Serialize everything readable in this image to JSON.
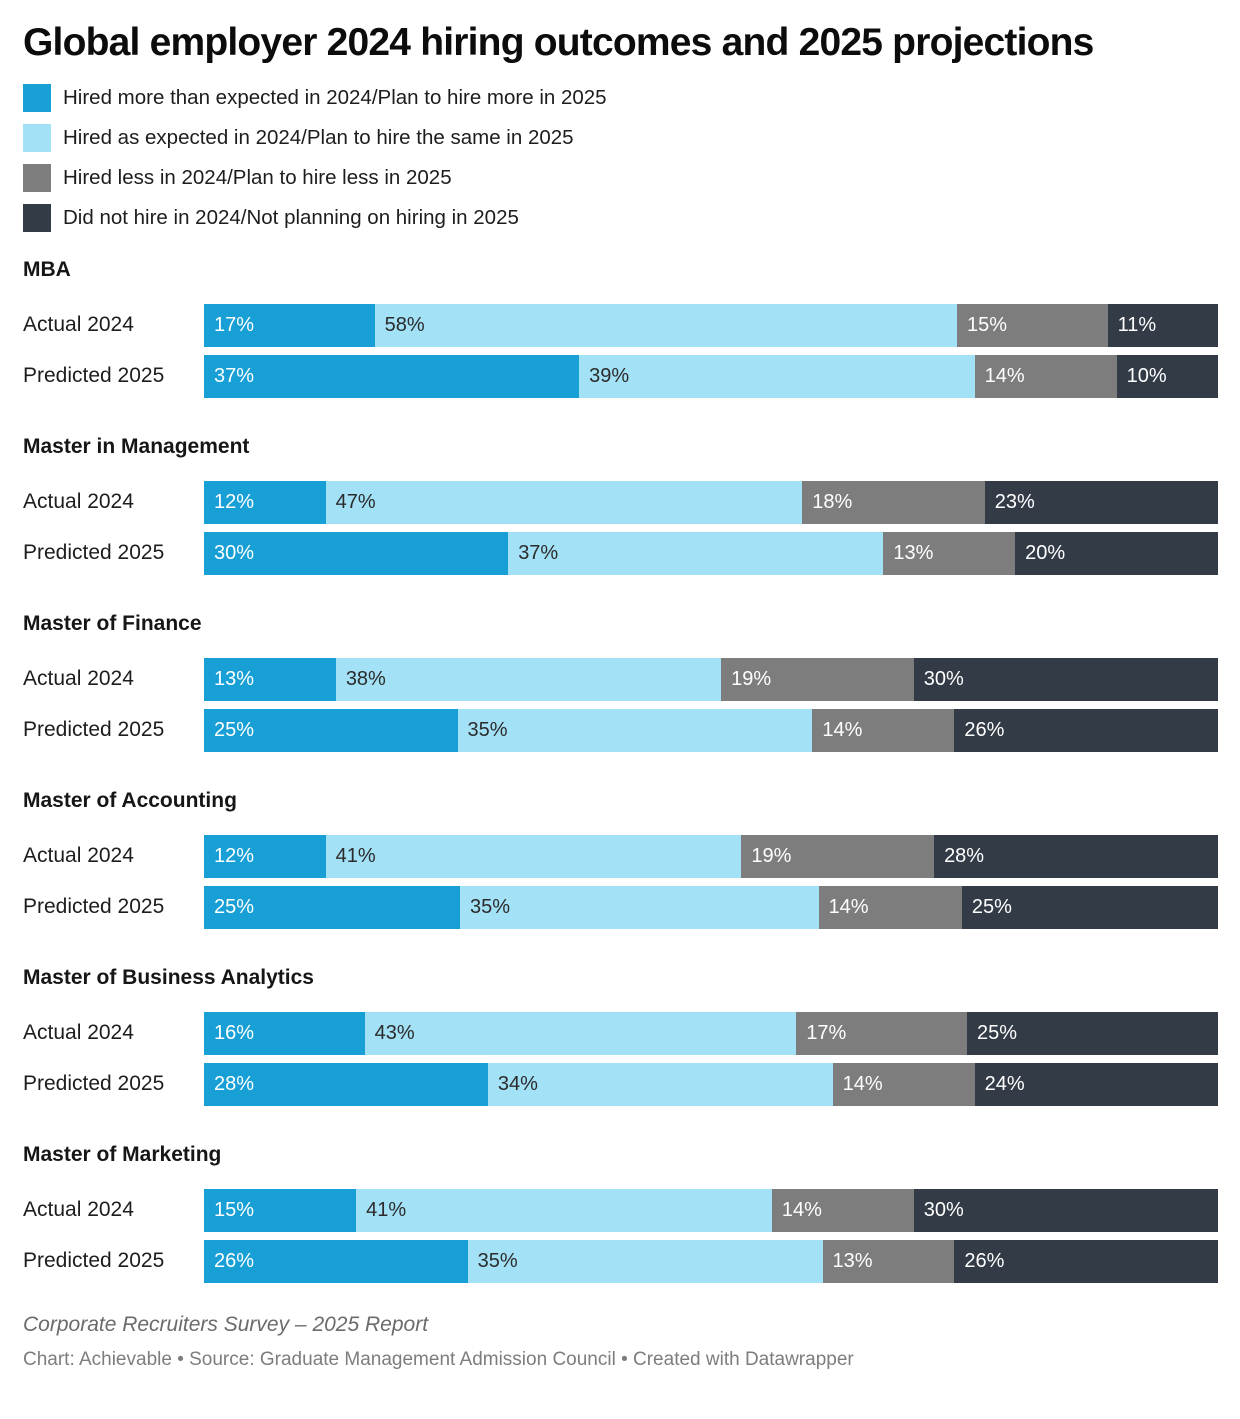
{
  "title": "Global employer 2024 hiring outcomes and 2025 projections",
  "chart_data": {
    "type": "bar",
    "orientation": "horizontal",
    "stacked": true,
    "normalized_to_100": true,
    "unit": "%",
    "legend_position": "top-left",
    "legend": [
      "Hired more than expected in 2024/Plan to hire more in 2025",
      "Hired as expected in 2024/Plan to hire the same in 2025",
      "Hired less in 2024/Plan to hire less in 2025",
      "Did not hire in 2024/Not planning on hiring in 2025"
    ],
    "series_colors": [
      "#18a0d6",
      "#a3e1f6",
      "#7d7d7d",
      "#333b47"
    ],
    "series_label_text_colors": [
      "#ffffff",
      "#2b2b2b",
      "#ffffff",
      "#ffffff"
    ],
    "groups": [
      {
        "name": "MBA",
        "rows": [
          {
            "label": "Actual 2024",
            "values": [
              17,
              58,
              15,
              11
            ]
          },
          {
            "label": "Predicted 2025",
            "values": [
              37,
              39,
              14,
              10
            ]
          }
        ]
      },
      {
        "name": "Master in Management",
        "rows": [
          {
            "label": "Actual 2024",
            "values": [
              12,
              47,
              18,
              23
            ]
          },
          {
            "label": "Predicted 2025",
            "values": [
              30,
              37,
              13,
              20
            ]
          }
        ]
      },
      {
        "name": "Master of Finance",
        "rows": [
          {
            "label": "Actual 2024",
            "values": [
              13,
              38,
              19,
              30
            ]
          },
          {
            "label": "Predicted 2025",
            "values": [
              25,
              35,
              14,
              26
            ]
          }
        ]
      },
      {
        "name": "Master of Accounting",
        "rows": [
          {
            "label": "Actual 2024",
            "values": [
              12,
              41,
              19,
              28
            ]
          },
          {
            "label": "Predicted 2025",
            "values": [
              25,
              35,
              14,
              25
            ]
          }
        ]
      },
      {
        "name": "Master of Business Analytics",
        "rows": [
          {
            "label": "Actual 2024",
            "values": [
              16,
              43,
              17,
              25
            ]
          },
          {
            "label": "Predicted 2025",
            "values": [
              28,
              34,
              14,
              24
            ]
          }
        ]
      },
      {
        "name": "Master of Marketing",
        "rows": [
          {
            "label": "Actual 2024",
            "values": [
              15,
              41,
              14,
              30
            ]
          },
          {
            "label": "Predicted 2025",
            "values": [
              26,
              35,
              13,
              26
            ]
          }
        ]
      }
    ]
  },
  "footer": {
    "note": "Corporate Recruiters Survey – 2025 Report",
    "byline": "Chart: Achievable • Source: Graduate Management Admission Council • Created with Datawrapper"
  }
}
